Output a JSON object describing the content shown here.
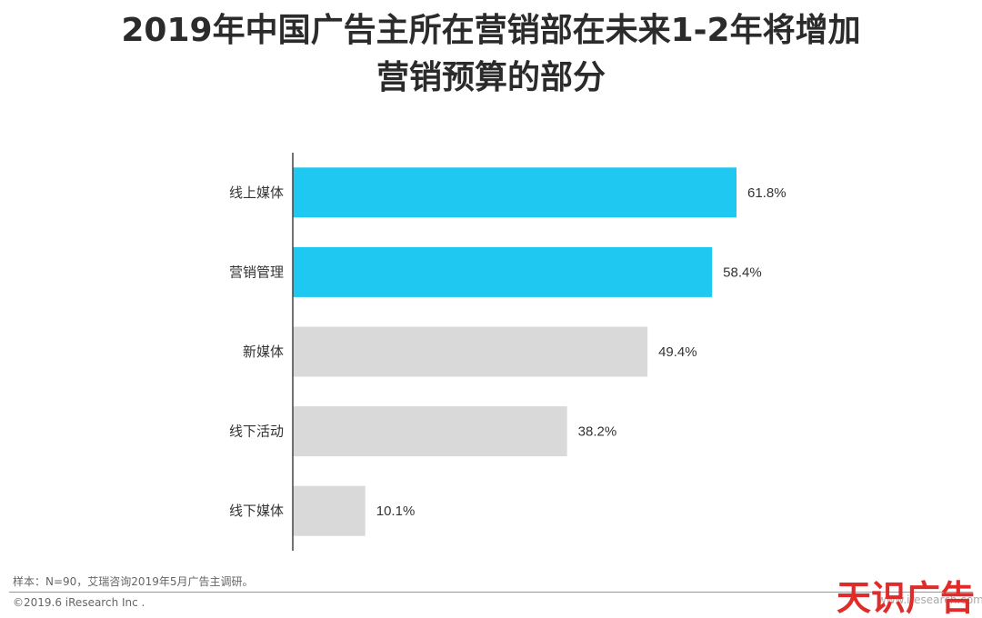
{
  "page": {
    "title_line1": "2019年中国广告主所在营销部在未来1-2年将增加",
    "title_line2": "营销预算的部分",
    "footnote": "样本：N=90，艾瑞咨询2019年5月广告主调研。",
    "copyright": "©2019.6 iResearch Inc .",
    "watermark": "天识广告",
    "watermark_url": "www.iresearch.com"
  },
  "colors": {
    "highlight": "#1ec8f0",
    "muted": "#d9d9d9",
    "axis": "#444444",
    "label": "#333333"
  },
  "chart_data": {
    "type": "bar",
    "orientation": "horizontal",
    "categories": [
      "线上媒体",
      "营销管理",
      "新媒体",
      "线下活动",
      "线下媒体"
    ],
    "values": [
      61.8,
      58.4,
      49.4,
      38.2,
      10.1
    ],
    "value_labels": [
      "61.8%",
      "58.4%",
      "49.4%",
      "38.2%",
      "10.1%"
    ],
    "highlighted": [
      true,
      true,
      false,
      false,
      false
    ],
    "xlim": [
      0,
      100
    ],
    "grid": false,
    "legend": "none"
  }
}
